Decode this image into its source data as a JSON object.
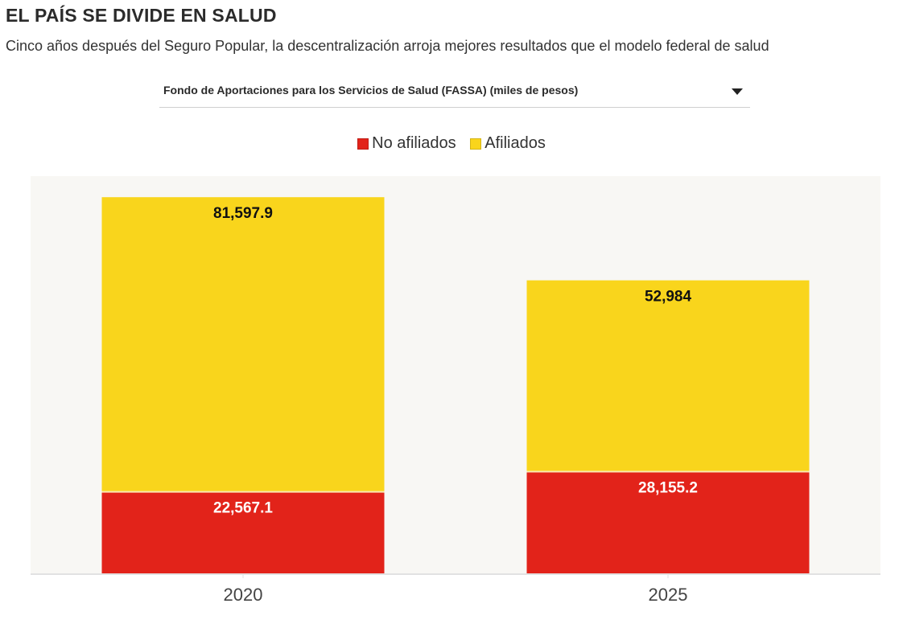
{
  "header": {
    "title": "EL PAÍS SE DIVIDE EN SALUD",
    "subtitle": "Cinco años después del Seguro Popular, la descentralización arroja mejores resultados que el modelo federal de salud"
  },
  "selector": {
    "selected": "Fondo de Aportaciones para los Servicios de Salud (FASSA) (miles de pesos)",
    "icon": "caret-down-icon"
  },
  "colors": {
    "no_afiliados": "#e2231a",
    "afiliados": "#f9d51c",
    "plot_bg": "#f8f7f4",
    "axis": "#e2e2e2"
  },
  "chart_data": {
    "type": "bar",
    "stacked": true,
    "title": "",
    "xlabel": "",
    "ylabel": "",
    "categories": [
      "2020",
      "2025"
    ],
    "series": [
      {
        "name": "No afiliados",
        "color": "#e2231a",
        "values": [
          22567.1,
          28155.2
        ],
        "labels": [
          "22,567.1",
          "28,155.2"
        ],
        "label_color": "#ffffff"
      },
      {
        "name": "Afiliados",
        "color": "#f9d51c",
        "values": [
          81597.9,
          52984
        ],
        "labels": [
          "81,597.9",
          "52,984"
        ],
        "label_color": "#111111"
      }
    ],
    "ylim": [
      0,
      110000
    ],
    "grid": false,
    "y_axis_visible": false,
    "legend": "top-center"
  }
}
